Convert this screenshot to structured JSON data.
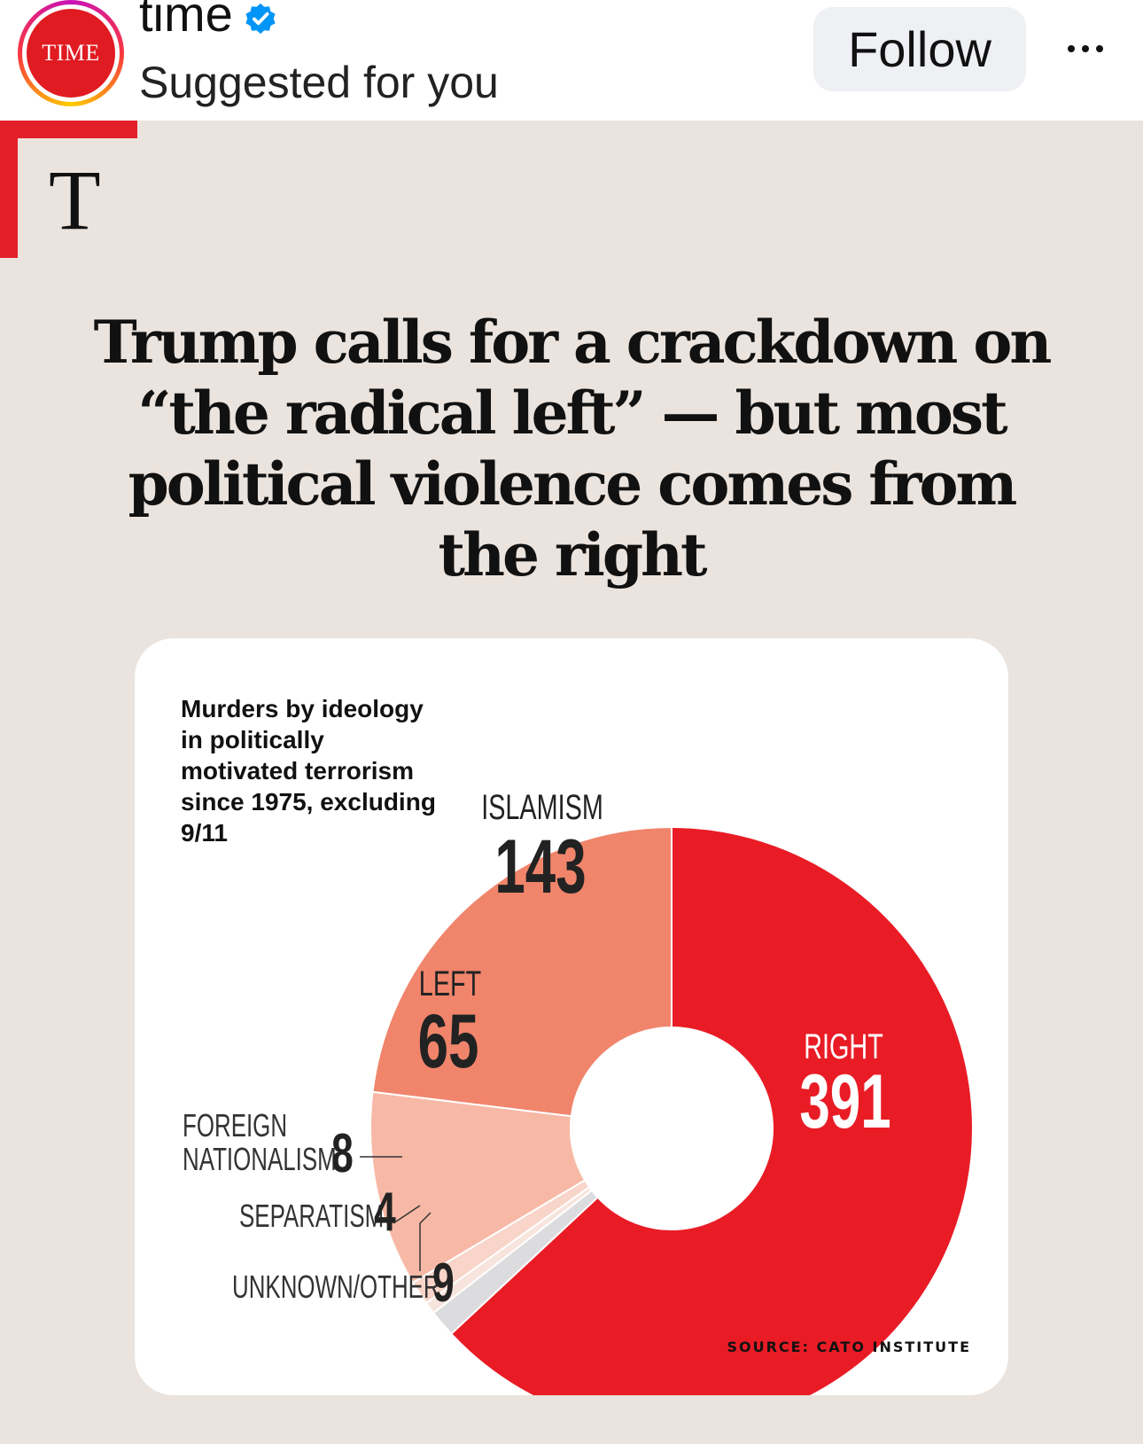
{
  "header": {
    "avatar_text": "TIME",
    "username": "time",
    "subtitle": "Suggested for you",
    "follow_label": "Follow",
    "more_icon": "more-horizontal-icon"
  },
  "post": {
    "logo_letter": "T",
    "headline": "Trump calls for a crackdown on “the radical left” — but most political violence comes from the right"
  },
  "chart_data": {
    "type": "pie",
    "variant": "donut",
    "title": "Murders by ideology in politically motivated terrorism since 1975, excluding 9/11",
    "source": "SOURCE: CATO INSTITUTE",
    "series": [
      {
        "name": "Right",
        "label_line1": "RIGHT",
        "label_line2": "",
        "value": 391,
        "color": "#e91c26"
      },
      {
        "name": "Unknown/Other",
        "label_line1": "UNKNOWN/OTHER",
        "label_line2": "",
        "value": 9,
        "color": "#dcdcde"
      },
      {
        "name": "Separatism",
        "label_line1": "SEPARATISM",
        "label_line2": "",
        "value": 4,
        "color": "#f7e4dd"
      },
      {
        "name": "Foreign Nationalism",
        "label_line1": "FOREIGN",
        "label_line2": "NATIONALISM",
        "value": 8,
        "color": "#f9d4c8"
      },
      {
        "name": "Left",
        "label_line1": "LEFT",
        "label_line2": "",
        "value": 65,
        "color": "#f7b9a6"
      },
      {
        "name": "Islamism",
        "label_line1": "ISLAMISM",
        "label_line2": "",
        "value": 143,
        "color": "#f0856c"
      }
    ]
  },
  "colors": {
    "brand_red": "#e3202a",
    "background": "#ebe3dd",
    "verified_blue": "#0095f6"
  }
}
